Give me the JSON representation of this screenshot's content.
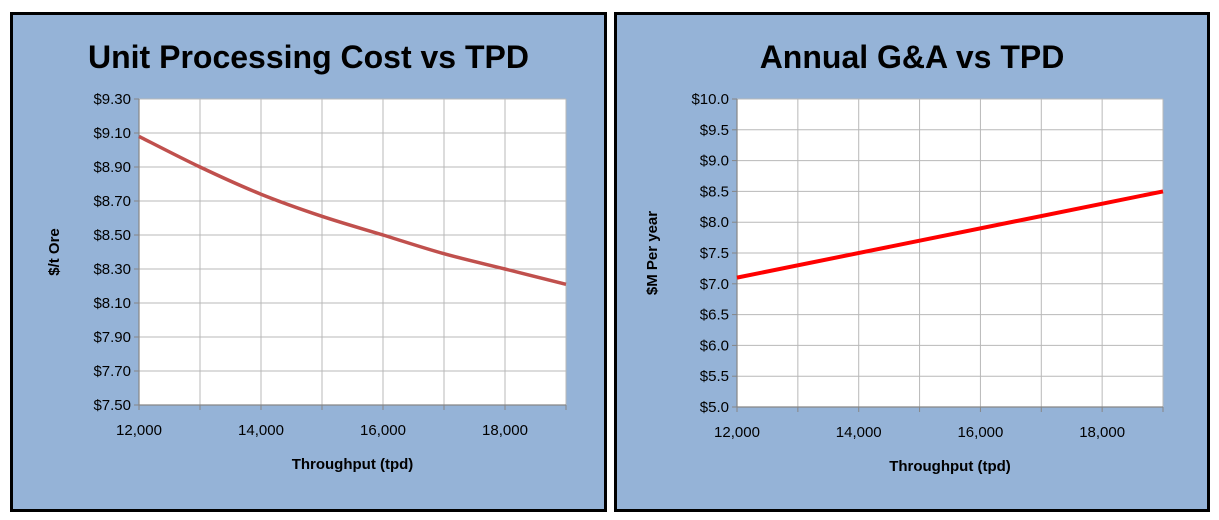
{
  "chart_data": [
    {
      "type": "line",
      "title": "Unit Processing Cost vs TPD",
      "xlabel": "Throughput (tpd)",
      "ylabel": "$/t Ore",
      "xlim": [
        12000,
        19000
      ],
      "ylim": [
        7.5,
        9.3
      ],
      "x_ticks": [
        12000,
        13000,
        14000,
        15000,
        16000,
        17000,
        18000,
        19000
      ],
      "x_tick_labels": [
        "12,000",
        "",
        "14,000",
        "",
        "16,000",
        "",
        "18,000",
        ""
      ],
      "y_ticks": [
        7.5,
        7.7,
        7.9,
        8.1,
        8.3,
        8.5,
        8.7,
        8.9,
        9.1,
        9.3
      ],
      "y_tick_labels": [
        "$7.50",
        "$7.70",
        "$7.90",
        "$8.10",
        "$8.30",
        "$8.50",
        "$8.70",
        "$8.90",
        "$9.10",
        "$9.30"
      ],
      "grid": true,
      "series": [
        {
          "color": "#c0504d",
          "x": [
            12000,
            13000,
            14000,
            15000,
            16000,
            17000,
            18000,
            19000
          ],
          "y": [
            9.08,
            8.9,
            8.74,
            8.61,
            8.5,
            8.39,
            8.3,
            8.21
          ]
        }
      ]
    },
    {
      "type": "line",
      "title": "Annual G&A vs TPD",
      "xlabel": "Throughput (tpd)",
      "ylabel": "$M Per year",
      "xlim": [
        12000,
        19000
      ],
      "ylim": [
        5.0,
        10.0
      ],
      "x_ticks": [
        12000,
        13000,
        14000,
        15000,
        16000,
        17000,
        18000,
        19000
      ],
      "x_tick_labels": [
        "12,000",
        "",
        "14,000",
        "",
        "16,000",
        "",
        "18,000",
        ""
      ],
      "y_ticks": [
        5.0,
        5.5,
        6.0,
        6.5,
        7.0,
        7.5,
        8.0,
        8.5,
        9.0,
        9.5,
        10.0
      ],
      "y_tick_labels": [
        "$5.0",
        "$5.5",
        "$6.0",
        "$6.5",
        "$7.0",
        "$7.5",
        "$8.0",
        "$8.5",
        "$9.0",
        "$9.5",
        "$10.0"
      ],
      "grid": true,
      "series": [
        {
          "color": "#ff0000",
          "x": [
            12000,
            19000
          ],
          "y": [
            7.1,
            8.5
          ]
        }
      ]
    }
  ]
}
